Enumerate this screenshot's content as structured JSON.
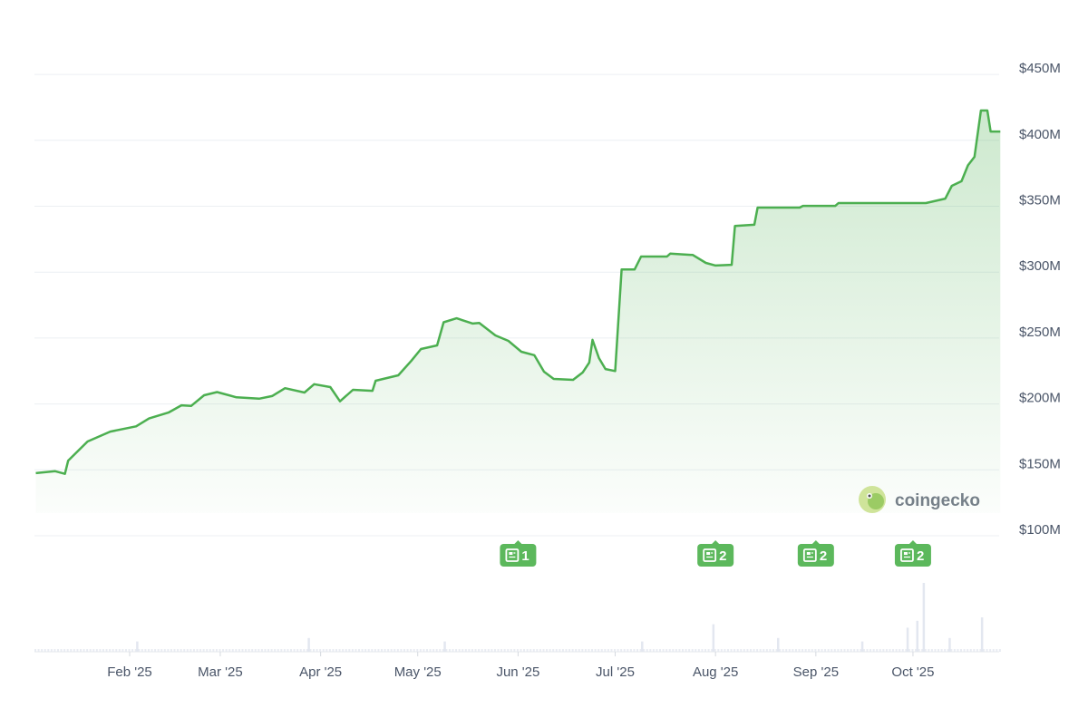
{
  "chart_data": {
    "type": "area",
    "title": "",
    "xlabel": "",
    "ylabel": "",
    "ylim": [
      100,
      450
    ],
    "yticks": [
      "$100M",
      "$150M",
      "$200M",
      "$250M",
      "$300M",
      "$350M",
      "$400M",
      "$450M"
    ],
    "ytick_values": [
      100,
      150,
      200,
      250,
      300,
      350,
      400,
      450
    ],
    "xticks": [
      "Feb '25",
      "Mar '25",
      "Apr '25",
      "May '25",
      "Jun '25",
      "Jul '25",
      "Aug '25",
      "Sep '25",
      "Oct '25"
    ],
    "xtick_dates": [
      "2025-02-01",
      "2025-03-01",
      "2025-04-01",
      "2025-05-01",
      "2025-06-01",
      "2025-07-01",
      "2025-08-01",
      "2025-09-01",
      "2025-10-01"
    ],
    "grid": true,
    "line_color": "#4caf50",
    "series": [
      {
        "x": [
          "2025-01-03",
          "2025-01-09",
          "2025-01-12",
          "2025-01-13",
          "2025-01-19",
          "2025-01-26",
          "2025-02-03",
          "2025-02-07",
          "2025-02-13",
          "2025-02-17",
          "2025-02-20",
          "2025-02-24",
          "2025-02-28",
          "2025-03-06",
          "2025-03-13",
          "2025-03-17",
          "2025-03-21",
          "2025-03-27",
          "2025-03-30",
          "2025-04-04",
          "2025-04-07",
          "2025-04-11",
          "2025-04-17",
          "2025-04-18",
          "2025-04-25",
          "2025-04-29",
          "2025-05-02",
          "2025-05-07",
          "2025-05-09",
          "2025-05-13",
          "2025-05-18",
          "2025-05-20",
          "2025-05-25",
          "2025-05-29",
          "2025-06-02",
          "2025-06-06",
          "2025-06-09",
          "2025-06-12",
          "2025-06-18",
          "2025-06-21",
          "2025-06-23",
          "2025-06-24",
          "2025-06-26",
          "2025-06-28",
          "2025-07-01",
          "2025-07-03",
          "2025-07-07",
          "2025-07-09",
          "2025-07-17",
          "2025-07-18",
          "2025-07-25",
          "2025-07-29",
          "2025-08-01",
          "2025-08-06",
          "2025-08-07",
          "2025-08-13",
          "2025-08-14",
          "2025-08-27",
          "2025-08-28",
          "2025-09-07",
          "2025-09-08",
          "2025-10-05",
          "2025-10-11",
          "2025-10-13",
          "2025-10-16",
          "2025-10-18",
          "2025-10-20",
          "2025-10-22",
          "2025-10-24",
          "2025-10-25",
          "2025-10-28"
        ],
        "values": [
          147.5,
          149,
          147,
          157,
          171.5,
          179,
          183,
          189,
          193.5,
          199,
          198.5,
          206.6,
          209,
          205,
          204,
          206,
          212,
          208.7,
          215,
          212.8,
          202,
          210.7,
          210,
          217.6,
          221.7,
          232.7,
          241.7,
          244.4,
          262,
          265,
          261,
          261.5,
          252,
          247.9,
          239.6,
          237,
          224.5,
          219,
          218.3,
          224,
          231.4,
          248.6,
          234.8,
          226.5,
          225,
          302,
          302,
          311.8,
          311.8,
          314,
          313,
          307,
          305,
          305.6,
          335,
          336,
          349,
          349,
          350.3,
          350.3,
          352.4,
          352.4,
          355.8,
          365.5,
          369,
          381,
          387.5,
          422.6,
          422.6,
          406.7,
          406.7
        ]
      }
    ],
    "volume": {
      "x": [
        "2025-02-03",
        "2025-03-28",
        "2025-05-09",
        "2025-07-09",
        "2025-07-31",
        "2025-08-20",
        "2025-09-15",
        "2025-09-29",
        "2025-10-02",
        "2025-10-04",
        "2025-10-12",
        "2025-10-22"
      ],
      "values": [
        3,
        4,
        3,
        3,
        8,
        4,
        3,
        7,
        9,
        20,
        4,
        10
      ]
    },
    "news": [
      {
        "date": "2025-06-01",
        "count": "1"
      },
      {
        "date": "2025-08-01",
        "count": "2"
      },
      {
        "date": "2025-09-01",
        "count": "2"
      },
      {
        "date": "2025-10-01",
        "count": "2"
      }
    ],
    "news_color": "#5cb85c"
  },
  "watermark": {
    "text": "coingecko"
  }
}
